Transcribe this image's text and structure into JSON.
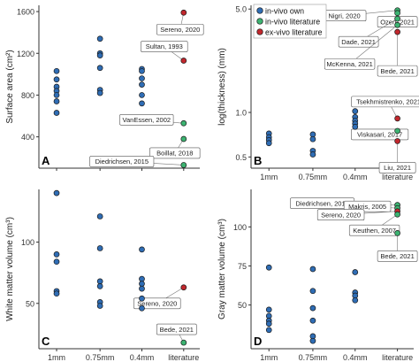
{
  "colors": {
    "in_vivo_own": "#2f6db5",
    "in_vivo_literature": "#3cb371",
    "ex_vivo_literature": "#c2272d",
    "axis": "#333333",
    "label_border": "#555555"
  },
  "legend": [
    {
      "key": "in_vivo_own",
      "label": "in-vivo own"
    },
    {
      "key": "in_vivo_literature",
      "label": "in-vivo literature"
    },
    {
      "key": "ex_vivo_literature",
      "label": "ex-vivo literature"
    }
  ],
  "chart_data": [
    {
      "type": "scatter",
      "panel": "A",
      "ylabel": "Surface area (cm²)",
      "categories": [
        "1mm",
        "0.75mm",
        "0.4mm",
        "literature"
      ],
      "ylim": [
        100,
        1660
      ],
      "yscale": "linear",
      "yticks": [
        400,
        800,
        1200,
        1600
      ],
      "ytick_labels": [
        "400",
        "800",
        "1200",
        "1600"
      ],
      "show_x_labels": false,
      "points": [
        {
          "cat": "1mm",
          "y": 1030,
          "group": "in_vivo_own"
        },
        {
          "cat": "1mm",
          "y": 950,
          "group": "in_vivo_own"
        },
        {
          "cat": "1mm",
          "y": 880,
          "group": "in_vivo_own"
        },
        {
          "cat": "1mm",
          "y": 840,
          "group": "in_vivo_own"
        },
        {
          "cat": "1mm",
          "y": 800,
          "group": "in_vivo_own"
        },
        {
          "cat": "1mm",
          "y": 740,
          "group": "in_vivo_own"
        },
        {
          "cat": "1mm",
          "y": 630,
          "group": "in_vivo_own"
        },
        {
          "cat": "0.75mm",
          "y": 1340,
          "group": "in_vivo_own"
        },
        {
          "cat": "0.75mm",
          "y": 1200,
          "group": "in_vivo_own"
        },
        {
          "cat": "0.75mm",
          "y": 1180,
          "group": "in_vivo_own"
        },
        {
          "cat": "0.75mm",
          "y": 1060,
          "group": "in_vivo_own"
        },
        {
          "cat": "0.75mm",
          "y": 850,
          "group": "in_vivo_own"
        },
        {
          "cat": "0.75mm",
          "y": 820,
          "group": "in_vivo_own"
        },
        {
          "cat": "0.4mm",
          "y": 1050,
          "group": "in_vivo_own"
        },
        {
          "cat": "0.4mm",
          "y": 1030,
          "group": "in_vivo_own"
        },
        {
          "cat": "0.4mm",
          "y": 960,
          "group": "in_vivo_own"
        },
        {
          "cat": "0.4mm",
          "y": 900,
          "group": "in_vivo_own"
        },
        {
          "cat": "0.4mm",
          "y": 800,
          "group": "in_vivo_own"
        },
        {
          "cat": "0.4mm",
          "y": 720,
          "group": "in_vivo_own"
        },
        {
          "cat": "literature",
          "y": 1590,
          "group": "ex_vivo_literature",
          "label": "Sereno, 2020"
        },
        {
          "cat": "literature",
          "y": 1130,
          "group": "ex_vivo_literature",
          "label": "Sultan, 1993"
        },
        {
          "cat": "literature",
          "y": 530,
          "group": "in_vivo_literature",
          "label": "VanEssen, 2002"
        },
        {
          "cat": "literature",
          "y": 380,
          "group": "in_vivo_literature",
          "label": "Boillat, 2018"
        },
        {
          "cat": "literature",
          "y": 130,
          "group": "in_vivo_literature",
          "label": "Diedrichsen, 2015"
        }
      ]
    },
    {
      "type": "scatter",
      "panel": "B",
      "ylabel": "log(thickness) (mm)",
      "categories": [
        "1mm",
        "0.75mm",
        "0.4mm",
        "literature"
      ],
      "ylim": [
        0.42,
        5.3
      ],
      "yscale": "log",
      "yticks": [
        0.5,
        1.0,
        5.0
      ],
      "ytick_labels": [
        "0.5",
        "1.0",
        "5.0"
      ],
      "show_x_labels": true,
      "points": [
        {
          "cat": "1mm",
          "y": 0.72,
          "group": "in_vivo_own"
        },
        {
          "cat": "1mm",
          "y": 0.68,
          "group": "in_vivo_own"
        },
        {
          "cat": "1mm",
          "y": 0.65,
          "group": "in_vivo_own"
        },
        {
          "cat": "1mm",
          "y": 0.62,
          "group": "in_vivo_own"
        },
        {
          "cat": "0.75mm",
          "y": 0.71,
          "group": "in_vivo_own"
        },
        {
          "cat": "0.75mm",
          "y": 0.66,
          "group": "in_vivo_own"
        },
        {
          "cat": "0.75mm",
          "y": 0.55,
          "group": "in_vivo_own"
        },
        {
          "cat": "0.75mm",
          "y": 0.52,
          "group": "in_vivo_own"
        },
        {
          "cat": "0.4mm",
          "y": 1.02,
          "group": "in_vivo_own"
        },
        {
          "cat": "0.4mm",
          "y": 0.93,
          "group": "in_vivo_own"
        },
        {
          "cat": "0.4mm",
          "y": 0.88,
          "group": "in_vivo_own"
        },
        {
          "cat": "0.4mm",
          "y": 0.84,
          "group": "in_vivo_own"
        },
        {
          "cat": "0.4mm",
          "y": 0.8,
          "group": "in_vivo_own"
        },
        {
          "cat": "literature",
          "y": 4.9,
          "group": "in_vivo_literature",
          "label": "Nigri, 2020"
        },
        {
          "cat": "literature",
          "y": 4.7,
          "group": "in_vivo_literature",
          "label": "Ozen, 2021"
        },
        {
          "cat": "literature",
          "y": 4.3,
          "group": "in_vivo_literature",
          "label": "Dade, 2021"
        },
        {
          "cat": "literature",
          "y": 3.9,
          "group": "in_vivo_literature",
          "label": "McKenna, 2021"
        },
        {
          "cat": "literature",
          "y": 3.5,
          "group": "ex_vivo_literature",
          "label": "Bede, 2021"
        },
        {
          "cat": "literature",
          "y": 0.91,
          "group": "ex_vivo_literature",
          "label": "Tsekhmistrenko, 2021"
        },
        {
          "cat": "literature",
          "y": 0.75,
          "group": "in_vivo_literature",
          "label": "Viskasari, 2017"
        },
        {
          "cat": "literature",
          "y": 0.64,
          "group": "ex_vivo_literature",
          "label": "Liu, 2021"
        }
      ]
    },
    {
      "type": "scatter",
      "panel": "C",
      "ylabel": "White matter volume (cm³)",
      "categories": [
        "1mm",
        "0.75mm",
        "0.4mm",
        "literature"
      ],
      "ylim": [
        13,
        143
      ],
      "yscale": "linear",
      "yticks": [
        50,
        100
      ],
      "ytick_labels": [
        "50",
        "100"
      ],
      "show_x_labels": true,
      "points": [
        {
          "cat": "1mm",
          "y": 140,
          "group": "in_vivo_own"
        },
        {
          "cat": "1mm",
          "y": 90,
          "group": "in_vivo_own"
        },
        {
          "cat": "1mm",
          "y": 84,
          "group": "in_vivo_own"
        },
        {
          "cat": "1mm",
          "y": 60,
          "group": "in_vivo_own"
        },
        {
          "cat": "1mm",
          "y": 58,
          "group": "in_vivo_own"
        },
        {
          "cat": "0.75mm",
          "y": 121,
          "group": "in_vivo_own"
        },
        {
          "cat": "0.75mm",
          "y": 95,
          "group": "in_vivo_own"
        },
        {
          "cat": "0.75mm",
          "y": 68,
          "group": "in_vivo_own"
        },
        {
          "cat": "0.75mm",
          "y": 64,
          "group": "in_vivo_own"
        },
        {
          "cat": "0.75mm",
          "y": 51,
          "group": "in_vivo_own"
        },
        {
          "cat": "0.75mm",
          "y": 48,
          "group": "in_vivo_own"
        },
        {
          "cat": "0.4mm",
          "y": 94,
          "group": "in_vivo_own"
        },
        {
          "cat": "0.4mm",
          "y": 70,
          "group": "in_vivo_own"
        },
        {
          "cat": "0.4mm",
          "y": 66,
          "group": "in_vivo_own"
        },
        {
          "cat": "0.4mm",
          "y": 62,
          "group": "in_vivo_own"
        },
        {
          "cat": "0.4mm",
          "y": 54,
          "group": "in_vivo_own"
        },
        {
          "cat": "0.4mm",
          "y": 46,
          "group": "in_vivo_own"
        },
        {
          "cat": "literature",
          "y": 63,
          "group": "ex_vivo_literature",
          "label": "Sereno, 2020"
        },
        {
          "cat": "literature",
          "y": 18,
          "group": "in_vivo_literature",
          "label": "Bede, 2021"
        }
      ]
    },
    {
      "type": "scatter",
      "panel": "D",
      "ylabel": "Gray matter volume (cm³)",
      "categories": [
        "1mm",
        "0.75mm",
        "0.4mm",
        "literature"
      ],
      "ylim": [
        22,
        124
      ],
      "yscale": "linear",
      "yticks": [
        50,
        75,
        100
      ],
      "ytick_labels": [
        "50",
        "75",
        "100"
      ],
      "show_x_labels": true,
      "points": [
        {
          "cat": "1mm",
          "y": 74,
          "group": "in_vivo_own"
        },
        {
          "cat": "1mm",
          "y": 47,
          "group": "in_vivo_own"
        },
        {
          "cat": "1mm",
          "y": 43,
          "group": "in_vivo_own"
        },
        {
          "cat": "1mm",
          "y": 40,
          "group": "in_vivo_own"
        },
        {
          "cat": "1mm",
          "y": 38,
          "group": "in_vivo_own"
        },
        {
          "cat": "1mm",
          "y": 34,
          "group": "in_vivo_own"
        },
        {
          "cat": "0.75mm",
          "y": 73,
          "group": "in_vivo_own"
        },
        {
          "cat": "0.75mm",
          "y": 59,
          "group": "in_vivo_own"
        },
        {
          "cat": "0.75mm",
          "y": 48,
          "group": "in_vivo_own"
        },
        {
          "cat": "0.75mm",
          "y": 40,
          "group": "in_vivo_own"
        },
        {
          "cat": "0.75mm",
          "y": 30,
          "group": "in_vivo_own"
        },
        {
          "cat": "0.75mm",
          "y": 27,
          "group": "in_vivo_own"
        },
        {
          "cat": "0.4mm",
          "y": 71,
          "group": "in_vivo_own"
        },
        {
          "cat": "0.4mm",
          "y": 58,
          "group": "in_vivo_own"
        },
        {
          "cat": "0.4mm",
          "y": 56,
          "group": "in_vivo_own"
        },
        {
          "cat": "0.4mm",
          "y": 53,
          "group": "in_vivo_own"
        },
        {
          "cat": "literature",
          "y": 114,
          "group": "in_vivo_literature",
          "label": "Diedrichsen, 2015"
        },
        {
          "cat": "literature",
          "y": 112,
          "group": "in_vivo_literature",
          "label": "Makris, 2005"
        },
        {
          "cat": "literature",
          "y": 110,
          "group": "ex_vivo_literature",
          "label": "Sereno, 2020"
        },
        {
          "cat": "literature",
          "y": 108,
          "group": "in_vivo_literature",
          "label": "Keuthen, 2007"
        },
        {
          "cat": "literature",
          "y": 96,
          "group": "in_vivo_literature",
          "label": "Bede, 2021"
        }
      ]
    }
  ]
}
